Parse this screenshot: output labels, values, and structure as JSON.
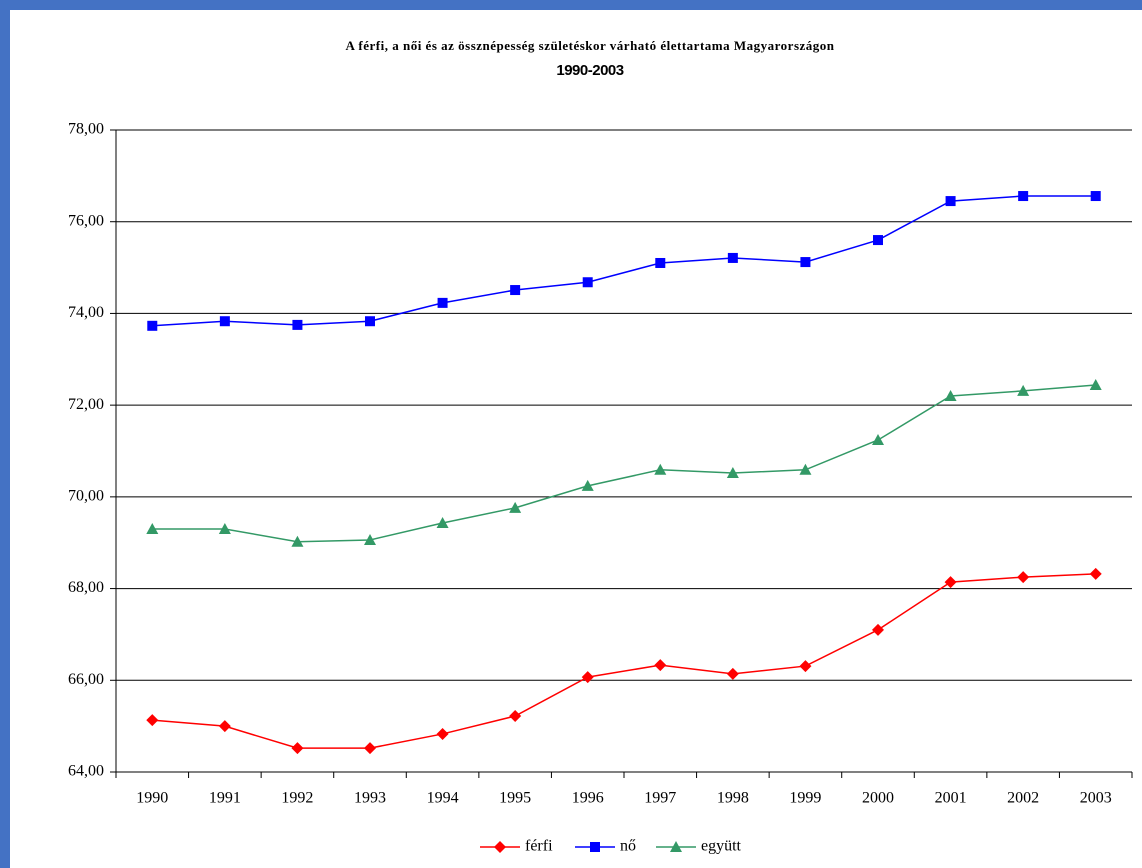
{
  "chart_data": {
    "type": "line",
    "title": "A férfi, a női és az össznépesség születéskor várható élettartama Magyarországon",
    "subtitle": "1990-2003",
    "categories": [
      "1990",
      "1991",
      "1992",
      "1993",
      "1994",
      "1995",
      "1996",
      "1997",
      "1998",
      "1999",
      "2000",
      "2001",
      "2002",
      "2003"
    ],
    "series": [
      {
        "name": "férfi",
        "color": "#ff0000",
        "marker": "diamond",
        "values": [
          65.13,
          65.0,
          64.52,
          64.52,
          64.83,
          65.22,
          66.07,
          66.33,
          66.14,
          66.31,
          67.1,
          68.14,
          68.25,
          68.32
        ]
      },
      {
        "name": "nő",
        "color": "#0000ff",
        "marker": "square",
        "values": [
          73.73,
          73.83,
          73.75,
          73.83,
          74.23,
          74.51,
          74.68,
          75.1,
          75.21,
          75.12,
          75.6,
          76.45,
          76.56,
          76.56
        ]
      },
      {
        "name": "együtt",
        "color": "#339966",
        "marker": "triangle",
        "values": [
          69.3,
          69.3,
          69.02,
          69.06,
          69.43,
          69.76,
          70.24,
          70.59,
          70.52,
          70.59,
          71.24,
          72.2,
          72.31,
          72.44
        ]
      }
    ],
    "ylim": [
      64,
      78
    ],
    "yticks": [
      {
        "value": 64,
        "label": "64,00"
      },
      {
        "value": 66,
        "label": "66,00"
      },
      {
        "value": 68,
        "label": "68,00"
      },
      {
        "value": 70,
        "label": "70,00"
      },
      {
        "value": 72,
        "label": "72,00"
      },
      {
        "value": 74,
        "label": "74,00"
      },
      {
        "value": 76,
        "label": "76,00"
      },
      {
        "value": 78,
        "label": "78,00"
      }
    ],
    "grid": true,
    "legend": "bottom"
  }
}
